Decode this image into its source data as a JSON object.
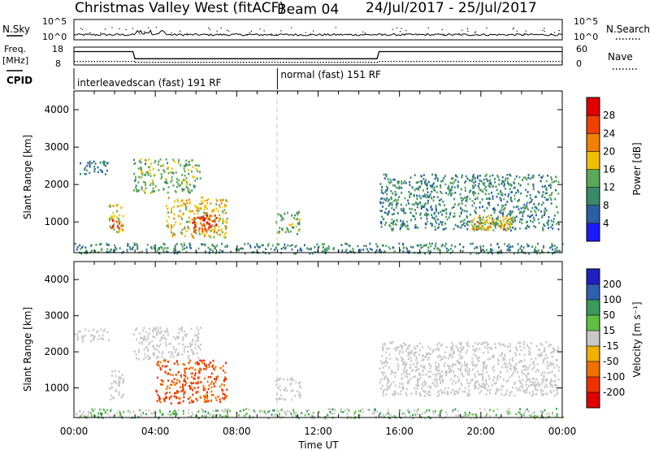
{
  "title": {
    "station": "Christmas Valley West (fitACF)",
    "beam": "Beam 04",
    "dates": "24/Jul/2017 - 25/Jul/2017"
  },
  "summary_panels": {
    "nsky": {
      "label": "N.Sky",
      "ticks_left": [
        "10^5",
        "10^0"
      ],
      "ticks_right": [
        "10^5",
        "10^0"
      ],
      "right_label": "N.Search"
    },
    "freq": {
      "label_line1": "Freq.",
      "label_line2": "[MHz]",
      "ticks_left": [
        "18",
        "8"
      ],
      "ticks_right": [
        "60",
        "0"
      ],
      "right_label": "Nave"
    },
    "cpid": {
      "label": "CPID"
    }
  },
  "cpid_modes": [
    {
      "label": "interleavedscan (fast) 191 RF",
      "start_hour": 0,
      "end_hour": 10
    },
    {
      "label": "normal (fast) 151 RF",
      "start_hour": 10,
      "end_hour": 24
    }
  ],
  "x_axis": {
    "label": "Time UT",
    "range_hours": [
      0,
      24
    ],
    "tick_labels": [
      "00:00",
      "04:00",
      "08:00",
      "12:00",
      "16:00",
      "20:00",
      "00:00"
    ]
  },
  "y_axis": {
    "label": "Slant Range [km]",
    "range_km": [
      180,
      4500
    ],
    "tick_labels": [
      "1000",
      "2000",
      "3000",
      "4000"
    ]
  },
  "colorbars": {
    "power": {
      "label": "Power [dB]",
      "tick_labels": [
        "4",
        "8",
        "12",
        "16",
        "20",
        "24",
        "28"
      ],
      "colors": [
        "#1a1aff",
        "#2a5fa8",
        "#3a8a6a",
        "#5aa85a",
        "#f0c000",
        "#f08000",
        "#f04000",
        "#e00000"
      ]
    },
    "velocity": {
      "label": "Velocity [m s⁻¹]",
      "tick_labels": [
        "200",
        "100",
        "50",
        "15",
        "-15",
        "-50",
        "-100",
        "-200"
      ],
      "colors": [
        "#2020c0",
        "#3060b0",
        "#3a9a5a",
        "#60c040",
        "#c8c8c8",
        "#f0b000",
        "#f07000",
        "#f03000",
        "#e00000"
      ]
    }
  },
  "chart_data": {
    "type": "heatmap",
    "x_unit": "hours UT",
    "y_unit": "km",
    "frequency_mhz": {
      "times_h": [
        0,
        2.9,
        3.0,
        14.9,
        15.0,
        24
      ],
      "values": [
        15.5,
        15.5,
        11.5,
        11.5,
        15.5,
        15.5
      ]
    },
    "nave_segments": [
      {
        "start_h": 0,
        "end_h": 3,
        "value": 12
      },
      {
        "start_h": 3,
        "end_h": 15,
        "value": 9
      },
      {
        "start_h": 15,
        "end_h": 24,
        "value": 12
      }
    ],
    "power_regions": [
      {
        "name": "early-far",
        "t0": 0.0,
        "t1": 1.7,
        "r0": 2300,
        "r1": 2650,
        "value": 10
      },
      {
        "name": "early-near",
        "t0": 1.7,
        "t1": 2.4,
        "r0": 700,
        "r1": 1500,
        "value": 20
      },
      {
        "name": "early-core",
        "t0": 1.8,
        "t1": 2.2,
        "r0": 800,
        "r1": 1100,
        "value": 28
      },
      {
        "name": "arc-far",
        "t0": 2.9,
        "t1": 6.2,
        "r0": 1800,
        "r1": 2700,
        "value": 16
      },
      {
        "name": "main-patch",
        "t0": 4.5,
        "t1": 7.5,
        "r0": 600,
        "r1": 1700,
        "value": 20
      },
      {
        "name": "main-core",
        "t0": 5.8,
        "t1": 7.0,
        "r0": 750,
        "r1": 1200,
        "value": 28
      },
      {
        "name": "mid-patch",
        "t0": 9.9,
        "t1": 11.1,
        "r0": 700,
        "r1": 1300,
        "value": 16
      },
      {
        "name": "late-patch",
        "t0": 15.0,
        "t1": 23.8,
        "r0": 800,
        "r1": 2300,
        "value": 12
      },
      {
        "name": "late-core",
        "t0": 19.5,
        "t1": 21.5,
        "r0": 800,
        "r1": 1200,
        "value": 20
      },
      {
        "name": "ground",
        "t0": 0.0,
        "t1": 24.0,
        "r0": 180,
        "r1": 450,
        "value": 12
      }
    ],
    "velocity_regions": [
      {
        "name": "early-far",
        "t0": 0.0,
        "t1": 1.7,
        "r0": 2300,
        "r1": 2650,
        "value": 0
      },
      {
        "name": "early-near",
        "t0": 1.7,
        "t1": 2.4,
        "r0": 700,
        "r1": 1500,
        "value": 0
      },
      {
        "name": "arc-far",
        "t0": 2.9,
        "t1": 6.2,
        "r0": 1800,
        "r1": 2700,
        "value": 0
      },
      {
        "name": "main-patch",
        "t0": 4.0,
        "t1": 7.5,
        "r0": 600,
        "r1": 1800,
        "value": -100
      },
      {
        "name": "mid-patch",
        "t0": 9.9,
        "t1": 11.1,
        "r0": 700,
        "r1": 1300,
        "value": 0
      },
      {
        "name": "late-patch",
        "t0": 15.0,
        "t1": 23.8,
        "r0": 800,
        "r1": 2300,
        "value": 0
      },
      {
        "name": "ground",
        "t0": 0.0,
        "t1": 24.0,
        "r0": 180,
        "r1": 450,
        "value": 15
      }
    ]
  }
}
